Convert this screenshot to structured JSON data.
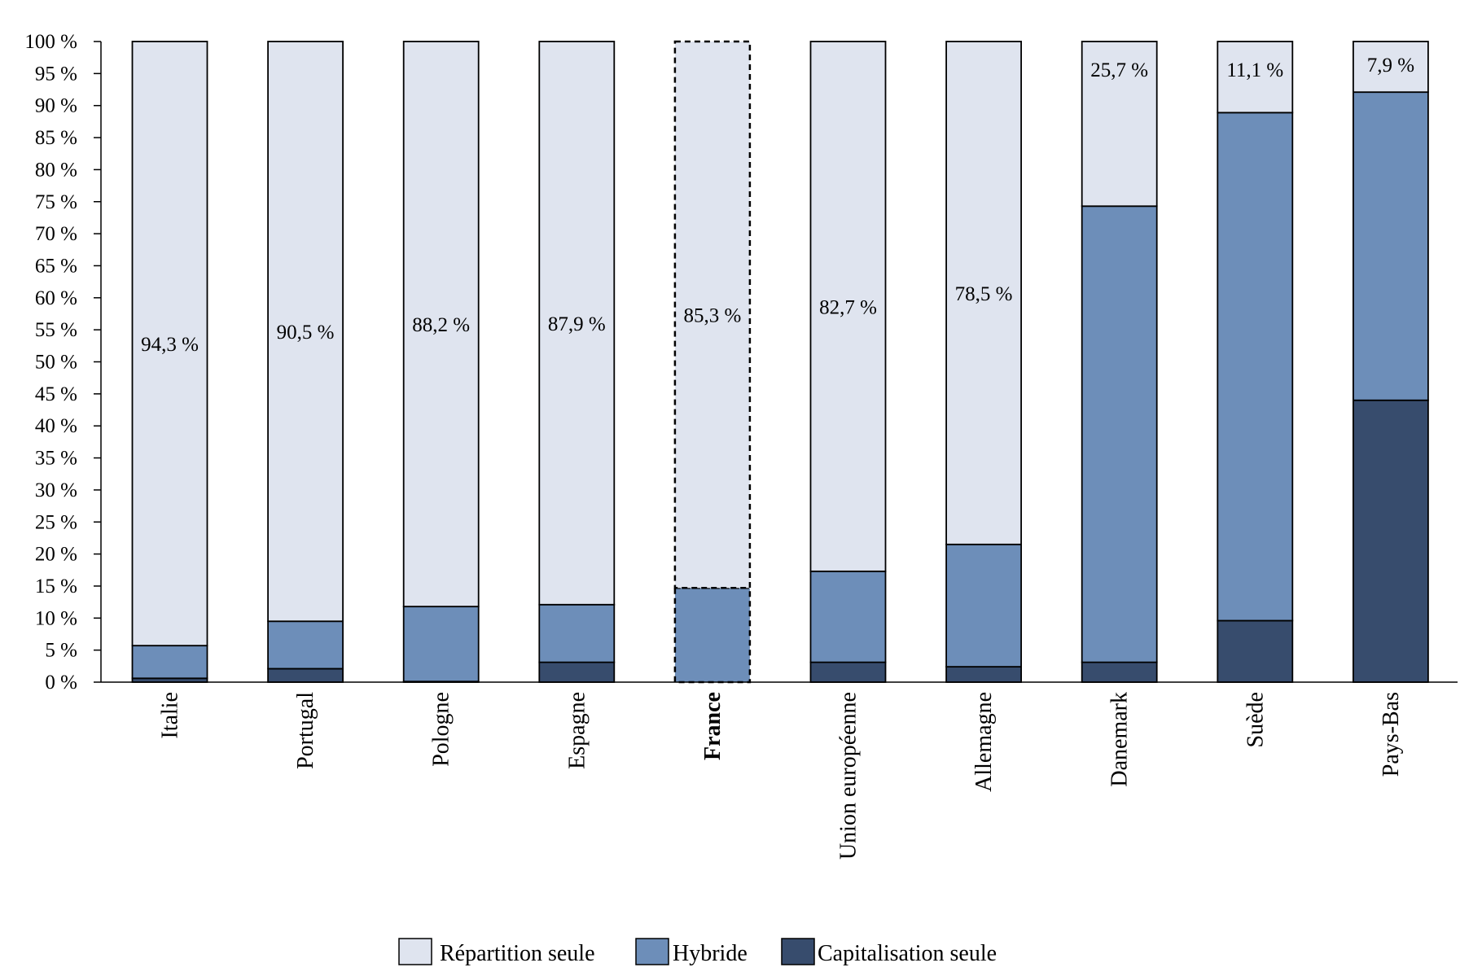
{
  "chart_data": {
    "type": "bar",
    "stacked": true,
    "categories": [
      "Italie",
      "Portugal",
      "Pologne",
      "Espagne",
      "France",
      "Union européenne",
      "Allemagne",
      "Danemark",
      "Suède",
      "Pays-Bas"
    ],
    "highlight_category": "France",
    "series": [
      {
        "name": "Capitalisation seule",
        "color": "#374C6D",
        "values": [
          0.6,
          2.1,
          0.1,
          3.1,
          0.0,
          3.1,
          2.4,
          3.1,
          9.6,
          44.0
        ]
      },
      {
        "name": "Hybride",
        "color": "#6D8EB9",
        "values": [
          5.1,
          7.4,
          11.7,
          9.0,
          14.7,
          14.2,
          19.1,
          71.2,
          79.3,
          48.1
        ]
      },
      {
        "name": "Répartition seule",
        "color": "#DFE4EF",
        "values": [
          94.3,
          90.5,
          88.2,
          87.9,
          85.3,
          82.7,
          78.5,
          25.7,
          11.1,
          7.9
        ]
      }
    ],
    "data_labels": [
      "94,3 %",
      "90,5 %",
      "88,2 %",
      "87,9 %",
      "85,3 %",
      "82,7 %",
      "78,5 %",
      "25,7 %",
      "11,1 %",
      "7,9 %"
    ],
    "y_ticks": [
      "0 %",
      "5 %",
      "10 %",
      "15 %",
      "20 %",
      "25 %",
      "30 %",
      "35 %",
      "40 %",
      "45 %",
      "50 %",
      "55 %",
      "60 %",
      "65 %",
      "70 %",
      "75 %",
      "80 %",
      "85 %",
      "90 %",
      "95 %",
      "100 %"
    ],
    "ylim": [
      0,
      100
    ],
    "grid": false,
    "legend_position": "bottom",
    "legend": [
      "Répartition seule",
      "Hybride",
      "Capitalisation seule"
    ]
  }
}
